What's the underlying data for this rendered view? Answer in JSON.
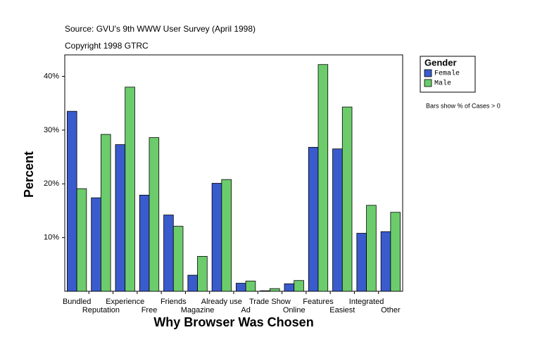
{
  "chart_data": {
    "type": "bar",
    "source": "Source: GVU's 9th WWW User Survey (April 1998)",
    "copyright": "Copyright 1998 GTRC",
    "x_label": "Why Browser Was Chosen",
    "y_label": "Percent",
    "legend_title": "Gender",
    "note": "Bars show % of Cases > 0",
    "categories": [
      "Bundled",
      "Reputation",
      "Experience",
      "Free",
      "Friends",
      "Magazine",
      "Already use",
      "Ad",
      "Trade Show",
      "Online",
      "Features",
      "Easiest",
      "Integrated",
      "Other"
    ],
    "series": [
      {
        "name": "Female",
        "color": "#3a5bcc",
        "values": [
          33.5,
          17.4,
          27.3,
          17.9,
          14.2,
          3.0,
          20.1,
          1.5,
          0.1,
          1.4,
          26.8,
          26.5,
          10.8,
          11.1
        ]
      },
      {
        "name": "Male",
        "color": "#6ccc6c",
        "values": [
          19.1,
          29.2,
          38.0,
          28.6,
          12.1,
          6.5,
          20.8,
          1.9,
          0.5,
          2.0,
          42.2,
          34.3,
          16.0,
          14.7
        ]
      }
    ],
    "ylim": [
      0,
      44
    ],
    "yticks": [
      {
        "value": 10,
        "label": "10%"
      },
      {
        "value": 20,
        "label": "20%"
      },
      {
        "value": 30,
        "label": "30%"
      },
      {
        "value": 40,
        "label": "40%"
      }
    ],
    "grid": false
  }
}
